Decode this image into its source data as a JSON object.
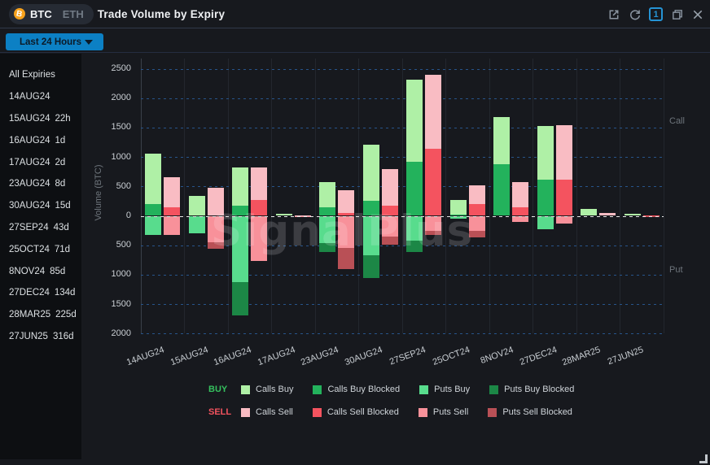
{
  "titlebar": {
    "title": "Trade Volume by Expiry",
    "asset_toggle": {
      "selected": "BTC",
      "other": "ETH",
      "icon": "bitcoin-icon",
      "icon_color": "#f7931a"
    },
    "badge_count": "1",
    "icons": [
      "open-external-icon",
      "refresh-icon",
      "badge-count-box",
      "restore-window-icon",
      "close-icon"
    ],
    "accent_blue": "#2593d4"
  },
  "toolbar": {
    "timeframe_value": "Last 24 Hours",
    "dropdown_color": "#0c80c4"
  },
  "sidebar": {
    "items": [
      {
        "label": "All Expiries",
        "days": ""
      },
      {
        "label": "14AUG24",
        "days": ""
      },
      {
        "label": "15AUG24",
        "days": "22h"
      },
      {
        "label": "16AUG24",
        "days": "1d"
      },
      {
        "label": "17AUG24",
        "days": "2d"
      },
      {
        "label": "23AUG24",
        "days": "8d"
      },
      {
        "label": "30AUG24",
        "days": "15d"
      },
      {
        "label": "27SEP24",
        "days": "43d"
      },
      {
        "label": "25OCT24",
        "days": "71d"
      },
      {
        "label": "8NOV24",
        "days": "85d"
      },
      {
        "label": "27DEC24",
        "days": "134d"
      },
      {
        "label": "28MAR25",
        "days": "225d"
      },
      {
        "label": "27JUN25",
        "days": "316d"
      }
    ]
  },
  "watermark": "SignalPlus",
  "chart_data": {
    "type": "bar",
    "title": "Trade Volume by Expiry",
    "ylabel": "Volume (BTC)",
    "right_axis_labels": {
      "top": "Call",
      "bottom": "Put"
    },
    "categories": [
      "14AUG24",
      "15AUG24",
      "16AUG24",
      "17AUG24",
      "23AUG24",
      "30AUG24",
      "27SEP24",
      "25OCT24",
      "8NOV24",
      "27DEC24",
      "28MAR25",
      "27JUN25"
    ],
    "y_tick_labels": [
      "2500",
      "2000",
      "1500",
      "1000",
      "500",
      "0",
      "500",
      "1000",
      "1500",
      "2000"
    ],
    "ylim": [
      -2000,
      2500
    ],
    "grid": "dotted horizontal, vertical category separators",
    "legend_position": "bottom",
    "series": [
      {
        "name": "Calls Buy",
        "bar": "buy",
        "side": "call",
        "color": "#aff0a6",
        "values": [
          860,
          345,
          645,
          40,
          440,
          960,
          1395,
          250,
          805,
          905,
          115,
          30
        ]
      },
      {
        "name": "Calls Buy Blocked",
        "bar": "buy",
        "side": "call",
        "color": "#23b25c",
        "values": [
          200,
          0,
          175,
          0,
          140,
          250,
          920,
          25,
          880,
          615,
          0,
          0
        ]
      },
      {
        "name": "Puts Buy",
        "bar": "buy",
        "side": "put",
        "color": "#58dc8d",
        "values": [
          330,
          300,
          1130,
          0,
          465,
          665,
          415,
          55,
          0,
          225,
          0,
          0
        ]
      },
      {
        "name": "Puts Buy Blocked",
        "bar": "buy",
        "side": "put",
        "color": "#1c8746",
        "values": [
          0,
          0,
          560,
          0,
          155,
          395,
          200,
          0,
          0,
          0,
          0,
          0
        ]
      },
      {
        "name": "Calls Sell",
        "bar": "sell",
        "side": "call",
        "color": "#f9bcc3",
        "values": [
          520,
          470,
          550,
          8,
          385,
          625,
          1260,
          320,
          425,
          925,
          55,
          0
        ]
      },
      {
        "name": "Calls Sell Blocked",
        "bar": "sell",
        "side": "call",
        "color": "#f4535f",
        "values": [
          140,
          0,
          270,
          0,
          50,
          175,
          1135,
          200,
          150,
          610,
          0,
          8
        ]
      },
      {
        "name": "Puts Sell",
        "bar": "sell",
        "side": "put",
        "color": "#f8919a",
        "values": [
          320,
          450,
          770,
          15,
          545,
          355,
          250,
          260,
          105,
          130,
          0,
          0
        ]
      },
      {
        "name": "Puts Sell Blocked",
        "bar": "sell",
        "side": "put",
        "color": "#b95056",
        "values": [
          0,
          105,
          0,
          0,
          355,
          140,
          80,
          110,
          0,
          0,
          0,
          10
        ]
      }
    ]
  },
  "legend": {
    "rows": [
      {
        "label": "BUY",
        "label_color": "#35c05e",
        "items": [
          "Calls Buy",
          "Calls Buy Blocked",
          "Puts Buy",
          "Puts Buy Blocked"
        ]
      },
      {
        "label": "SELL",
        "label_color": "#f4535f",
        "items": [
          "Calls Sell",
          "Calls Sell Blocked",
          "Puts Sell",
          "Puts Sell Blocked"
        ]
      }
    ]
  }
}
